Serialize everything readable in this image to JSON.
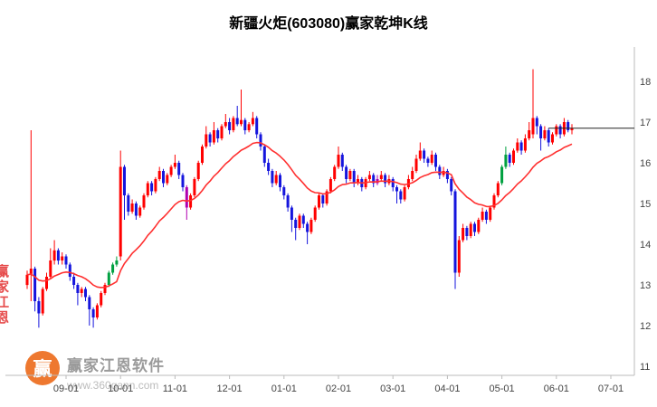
{
  "title": "新疆火炬(603080)赢家乾坤K线",
  "watermark": {
    "brand": "赢家江恩软件",
    "url": "www.360gann.com",
    "logo_char": "赢",
    "seal_text": "赢家江恩"
  },
  "colors": {
    "candle": {
      "r": "#ff0000",
      "b": "#1515dd",
      "g": "#00a040",
      "m": "#b000b0"
    },
    "ma": "#ff3030",
    "axis": "#bbbbbb",
    "tick_text": "#444444",
    "last_price_line": "#222222",
    "logo_orange": "#ed6d1e"
  },
  "chart_data": {
    "type": "candlestick",
    "title": "新疆火炬(603080)赢家乾坤K线",
    "legend": "none",
    "grid": false,
    "y_axis_side": "right",
    "y_ticks": [
      11,
      12,
      13,
      14,
      15,
      16,
      17,
      18
    ],
    "ylim": [
      10.8,
      18.8
    ],
    "x_ticks": [
      {
        "idx": 10,
        "label": "09-01"
      },
      {
        "idx": 24,
        "label": "10-01"
      },
      {
        "idx": 38,
        "label": "11-01"
      },
      {
        "idx": 52,
        "label": "12-01"
      },
      {
        "idx": 66,
        "label": "01-01"
      },
      {
        "idx": 80,
        "label": "02-01"
      },
      {
        "idx": 94,
        "label": "03-01"
      },
      {
        "idx": 108,
        "label": "04-01"
      },
      {
        "idx": 122,
        "label": "05-01"
      },
      {
        "idx": 136,
        "label": "06-01"
      },
      {
        "idx": 150,
        "label": "07-01"
      }
    ],
    "ma_period": 20,
    "last_price": 16.85,
    "candles": [
      [
        13.0,
        13.35,
        12.9,
        13.25,
        "r"
      ],
      [
        13.25,
        16.8,
        12.6,
        13.4,
        "r"
      ],
      [
        13.4,
        13.45,
        12.35,
        12.6,
        "b"
      ],
      [
        12.6,
        12.7,
        11.95,
        12.3,
        "b"
      ],
      [
        12.3,
        12.95,
        12.25,
        12.9,
        "r"
      ],
      [
        12.9,
        13.3,
        12.85,
        13.2,
        "r"
      ],
      [
        13.2,
        13.9,
        13.15,
        13.6,
        "r"
      ],
      [
        13.6,
        14.1,
        13.5,
        13.85,
        "r"
      ],
      [
        13.85,
        13.9,
        13.5,
        13.6,
        "b"
      ],
      [
        13.6,
        13.8,
        13.5,
        13.7,
        "r"
      ],
      [
        13.7,
        13.75,
        13.4,
        13.5,
        "b"
      ],
      [
        13.5,
        13.55,
        13.1,
        13.2,
        "b"
      ],
      [
        13.2,
        13.3,
        12.9,
        13.0,
        "b"
      ],
      [
        13.0,
        13.05,
        12.5,
        12.8,
        "b"
      ],
      [
        12.8,
        12.95,
        12.7,
        12.9,
        "r"
      ],
      [
        12.9,
        12.95,
        12.6,
        12.7,
        "b"
      ],
      [
        12.7,
        12.75,
        12.0,
        12.4,
        "b"
      ],
      [
        12.4,
        12.45,
        11.95,
        12.2,
        "b"
      ],
      [
        12.2,
        12.55,
        12.15,
        12.5,
        "r"
      ],
      [
        12.5,
        12.85,
        12.45,
        12.8,
        "r"
      ],
      [
        12.8,
        13.05,
        12.75,
        13.0,
        "r"
      ],
      [
        13.0,
        13.35,
        12.95,
        13.3,
        "g"
      ],
      [
        13.3,
        13.55,
        13.25,
        13.5,
        "g"
      ],
      [
        13.5,
        13.7,
        13.45,
        13.6,
        "g"
      ],
      [
        13.7,
        16.3,
        13.6,
        15.9,
        "r"
      ],
      [
        15.9,
        15.95,
        14.6,
        15.2,
        "b"
      ],
      [
        15.2,
        15.25,
        14.7,
        14.8,
        "b"
      ],
      [
        14.8,
        15.1,
        14.75,
        15.0,
        "r"
      ],
      [
        15.0,
        15.05,
        14.6,
        14.7,
        "b"
      ],
      [
        14.7,
        14.95,
        14.65,
        14.9,
        "r"
      ],
      [
        14.9,
        15.25,
        14.85,
        15.2,
        "r"
      ],
      [
        15.2,
        15.55,
        15.15,
        15.5,
        "r"
      ],
      [
        15.5,
        15.55,
        15.2,
        15.3,
        "b"
      ],
      [
        15.3,
        15.65,
        15.25,
        15.6,
        "r"
      ],
      [
        15.6,
        15.9,
        15.55,
        15.8,
        "r"
      ],
      [
        15.8,
        15.85,
        15.4,
        15.5,
        "b"
      ],
      [
        15.5,
        15.75,
        15.45,
        15.7,
        "r"
      ],
      [
        15.7,
        15.95,
        15.65,
        15.9,
        "r"
      ],
      [
        15.9,
        16.2,
        15.85,
        16.0,
        "r"
      ],
      [
        16.0,
        16.05,
        15.6,
        15.7,
        "b"
      ],
      [
        15.7,
        15.75,
        15.3,
        15.4,
        "b"
      ],
      [
        15.4,
        15.45,
        14.6,
        14.9,
        "m"
      ],
      [
        14.9,
        15.25,
        14.85,
        15.2,
        "r"
      ],
      [
        15.2,
        15.65,
        15.15,
        15.6,
        "r"
      ],
      [
        15.6,
        16.05,
        15.55,
        16.0,
        "r"
      ],
      [
        16.0,
        16.45,
        15.95,
        16.4,
        "r"
      ],
      [
        16.4,
        16.9,
        16.35,
        16.7,
        "r"
      ],
      [
        16.7,
        16.75,
        16.4,
        16.5,
        "b"
      ],
      [
        16.5,
        17.0,
        16.45,
        16.8,
        "r"
      ],
      [
        16.8,
        16.85,
        16.5,
        16.6,
        "b"
      ],
      [
        16.6,
        16.95,
        16.55,
        16.9,
        "r"
      ],
      [
        16.9,
        17.2,
        16.85,
        17.0,
        "r"
      ],
      [
        17.0,
        17.1,
        16.7,
        16.8,
        "b"
      ],
      [
        16.8,
        17.15,
        16.75,
        17.1,
        "r"
      ],
      [
        17.1,
        17.4,
        16.9,
        16.95,
        "b"
      ],
      [
        16.95,
        17.8,
        16.9,
        17.05,
        "r"
      ],
      [
        17.05,
        17.1,
        16.7,
        16.8,
        "b"
      ],
      [
        16.8,
        17.0,
        16.75,
        16.95,
        "r"
      ],
      [
        16.95,
        17.25,
        16.9,
        17.1,
        "r"
      ],
      [
        17.1,
        17.15,
        16.6,
        16.7,
        "b"
      ],
      [
        16.7,
        16.75,
        16.3,
        16.4,
        "b"
      ],
      [
        16.4,
        16.45,
        15.9,
        16.0,
        "b"
      ],
      [
        16.0,
        16.1,
        15.7,
        15.8,
        "b"
      ],
      [
        15.8,
        15.85,
        15.4,
        15.5,
        "b"
      ],
      [
        15.5,
        15.8,
        15.45,
        15.7,
        "r"
      ],
      [
        15.7,
        15.75,
        15.3,
        15.4,
        "b"
      ],
      [
        15.4,
        15.45,
        15.1,
        15.2,
        "b"
      ],
      [
        15.2,
        15.25,
        14.8,
        14.9,
        "b"
      ],
      [
        14.9,
        14.95,
        14.3,
        14.6,
        "b"
      ],
      [
        14.6,
        14.65,
        14.1,
        14.4,
        "b"
      ],
      [
        14.4,
        14.75,
        14.35,
        14.7,
        "r"
      ],
      [
        14.7,
        14.75,
        14.4,
        14.5,
        "b"
      ],
      [
        14.5,
        14.55,
        14.0,
        14.3,
        "b"
      ],
      [
        14.3,
        14.65,
        14.25,
        14.6,
        "r"
      ],
      [
        14.6,
        14.95,
        14.55,
        14.9,
        "r"
      ],
      [
        14.9,
        15.25,
        14.85,
        15.2,
        "r"
      ],
      [
        15.2,
        15.25,
        14.9,
        15.0,
        "b"
      ],
      [
        15.0,
        15.35,
        14.95,
        15.3,
        "r"
      ],
      [
        15.3,
        15.65,
        15.25,
        15.6,
        "r"
      ],
      [
        15.6,
        15.95,
        15.55,
        15.9,
        "r"
      ],
      [
        15.9,
        16.4,
        15.85,
        16.2,
        "r"
      ],
      [
        16.2,
        16.25,
        15.8,
        15.9,
        "b"
      ],
      [
        15.9,
        15.95,
        15.5,
        15.6,
        "b"
      ],
      [
        15.6,
        15.85,
        15.55,
        15.8,
        "r"
      ],
      [
        15.8,
        15.85,
        15.4,
        15.5,
        "b"
      ],
      [
        15.5,
        15.7,
        15.45,
        15.6,
        "r"
      ],
      [
        15.6,
        15.65,
        15.3,
        15.4,
        "b"
      ],
      [
        15.4,
        15.65,
        15.35,
        15.6,
        "r"
      ],
      [
        15.6,
        15.8,
        15.55,
        15.7,
        "r"
      ],
      [
        15.7,
        15.75,
        15.4,
        15.5,
        "b"
      ],
      [
        15.5,
        15.7,
        15.45,
        15.6,
        "m"
      ],
      [
        15.6,
        15.8,
        15.55,
        15.7,
        "r"
      ],
      [
        15.7,
        15.75,
        15.4,
        15.5,
        "b"
      ],
      [
        15.5,
        15.7,
        15.45,
        15.6,
        "r"
      ],
      [
        15.6,
        15.65,
        15.3,
        15.4,
        "b"
      ],
      [
        15.4,
        15.45,
        15.0,
        15.3,
        "b"
      ],
      [
        15.3,
        15.35,
        15.0,
        15.1,
        "b"
      ],
      [
        15.1,
        15.45,
        15.05,
        15.4,
        "r"
      ],
      [
        15.4,
        15.7,
        15.35,
        15.6,
        "r"
      ],
      [
        15.6,
        15.9,
        15.55,
        15.8,
        "r"
      ],
      [
        15.8,
        16.2,
        15.75,
        16.1,
        "r"
      ],
      [
        16.1,
        16.5,
        16.05,
        16.3,
        "r"
      ],
      [
        16.3,
        16.35,
        16.0,
        16.1,
        "b"
      ],
      [
        16.1,
        16.15,
        15.9,
        16.0,
        "b"
      ],
      [
        16.0,
        16.3,
        15.95,
        16.2,
        "r"
      ],
      [
        16.2,
        16.25,
        15.8,
        15.9,
        "b"
      ],
      [
        15.9,
        15.95,
        15.6,
        15.7,
        "b"
      ],
      [
        15.7,
        15.9,
        15.65,
        15.8,
        "r"
      ],
      [
        15.8,
        15.85,
        15.5,
        15.6,
        "b"
      ],
      [
        15.6,
        15.65,
        15.2,
        15.3,
        "b"
      ],
      [
        15.3,
        15.35,
        12.9,
        13.3,
        "b"
      ],
      [
        13.3,
        14.2,
        13.2,
        14.1,
        "r"
      ],
      [
        14.1,
        14.5,
        14.05,
        14.4,
        "r"
      ],
      [
        14.4,
        14.45,
        14.1,
        14.2,
        "b"
      ],
      [
        14.2,
        14.55,
        14.15,
        14.5,
        "r"
      ],
      [
        14.5,
        14.55,
        14.2,
        14.3,
        "b"
      ],
      [
        14.3,
        14.65,
        14.25,
        14.6,
        "r"
      ],
      [
        14.6,
        14.9,
        14.55,
        14.8,
        "r"
      ],
      [
        14.8,
        14.85,
        14.5,
        14.6,
        "b"
      ],
      [
        14.6,
        14.95,
        14.55,
        14.9,
        "r"
      ],
      [
        14.9,
        15.25,
        14.85,
        15.2,
        "r"
      ],
      [
        15.2,
        15.55,
        15.15,
        15.5,
        "r"
      ],
      [
        15.5,
        15.95,
        15.45,
        15.9,
        "g"
      ],
      [
        15.9,
        16.4,
        15.85,
        16.2,
        "g"
      ],
      [
        16.2,
        16.25,
        15.9,
        16.0,
        "b"
      ],
      [
        16.0,
        16.35,
        15.95,
        16.3,
        "r"
      ],
      [
        16.3,
        16.6,
        16.25,
        16.5,
        "r"
      ],
      [
        16.5,
        16.55,
        16.2,
        16.3,
        "b"
      ],
      [
        16.3,
        16.7,
        16.25,
        16.6,
        "r"
      ],
      [
        16.6,
        17.0,
        16.55,
        16.8,
        "r"
      ],
      [
        16.7,
        18.3,
        16.6,
        17.1,
        "r"
      ],
      [
        17.1,
        17.15,
        16.7,
        16.9,
        "b"
      ],
      [
        16.9,
        16.95,
        16.3,
        16.6,
        "b"
      ],
      [
        16.6,
        16.9,
        16.55,
        16.8,
        "r"
      ],
      [
        16.8,
        16.85,
        16.4,
        16.5,
        "b"
      ],
      [
        16.5,
        16.75,
        16.45,
        16.7,
        "r"
      ],
      [
        16.7,
        16.95,
        16.65,
        16.9,
        "r"
      ],
      [
        16.9,
        16.95,
        16.6,
        16.7,
        "b"
      ],
      [
        16.7,
        17.1,
        16.65,
        17.0,
        "r"
      ],
      [
        17.0,
        17.05,
        16.75,
        16.8,
        "b"
      ],
      [
        16.8,
        16.95,
        16.7,
        16.85,
        "r"
      ]
    ]
  }
}
